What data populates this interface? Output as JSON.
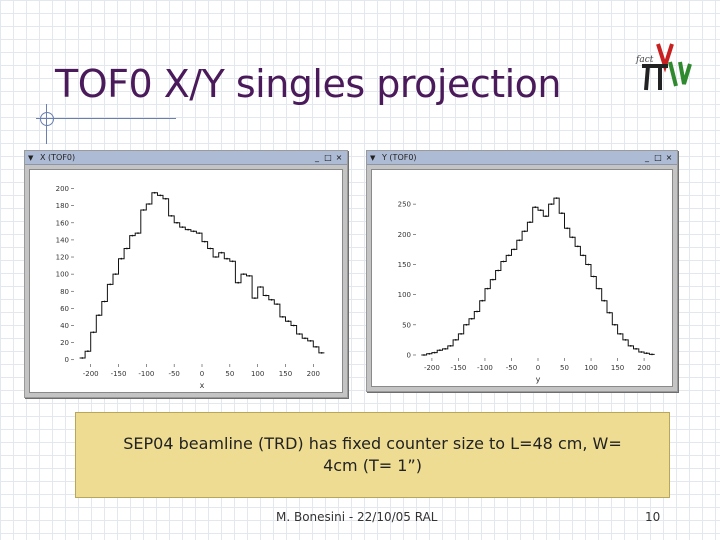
{
  "slide": {
    "title": "TOF0 X/Y singles projection",
    "note": "SEP04 beamline (TRD) has fixed counter size to L=48 cm, W= 4cm (T= 1”)",
    "footer_author": "M. Bonesini - 22/10/05 RAL",
    "page_number": "10"
  },
  "logo": {
    "icon": "pi-nu-mice-logo",
    "text": "fact"
  },
  "windows": [
    {
      "title": "X (TOF0)",
      "buttons": [
        "_",
        "□",
        "×"
      ]
    },
    {
      "title": "Y (TOF0)",
      "buttons": [
        "_",
        "□",
        "×"
      ]
    }
  ],
  "chart_data": [
    {
      "type": "line",
      "xlabel": "x",
      "ylabel": "",
      "xlim": [
        -230,
        230
      ],
      "ylim": [
        -5,
        210
      ],
      "xticks": [
        "-200",
        "-150",
        "-100",
        "-50",
        "0",
        "50",
        "100",
        "150",
        "200"
      ],
      "yticks": [
        "0",
        "20",
        "40",
        "60",
        "80",
        "100",
        "120",
        "140",
        "160",
        "180",
        "200"
      ],
      "grid": false,
      "bin_width": 10,
      "series": [
        {
          "x": [
            -215,
            -205,
            -195,
            -185,
            -175,
            -165,
            -155,
            -145,
            -135,
            -125,
            -115,
            -105,
            -95,
            -85,
            -75,
            -65,
            -55,
            -45,
            -35,
            -25,
            -15,
            -5,
            5,
            15,
            25,
            35,
            45,
            55,
            65,
            75,
            85,
            95,
            105,
            115,
            125,
            135,
            145,
            155,
            165,
            175,
            185,
            195,
            205,
            215
          ],
          "values": [
            2,
            10,
            32,
            52,
            68,
            88,
            100,
            118,
            130,
            145,
            148,
            175,
            182,
            195,
            192,
            188,
            168,
            160,
            155,
            152,
            150,
            148,
            138,
            130,
            120,
            125,
            118,
            115,
            90,
            100,
            98,
            72,
            85,
            75,
            70,
            65,
            50,
            45,
            40,
            30,
            25,
            22,
            15,
            8
          ]
        }
      ]
    },
    {
      "type": "line",
      "xlabel": "y",
      "ylabel": "",
      "xlim": [
        -230,
        230
      ],
      "ylim": [
        -5,
        290
      ],
      "xticks": [
        "-200",
        "-150",
        "-100",
        "-50",
        "0",
        "50",
        "100",
        "150",
        "200"
      ],
      "yticks": [
        "0",
        "50",
        "100",
        "150",
        "200",
        "250"
      ],
      "grid": false,
      "bin_width": 10,
      "series": [
        {
          "x": [
            -215,
            -205,
            -195,
            -185,
            -175,
            -165,
            -155,
            -145,
            -135,
            -125,
            -115,
            -105,
            -95,
            -85,
            -75,
            -65,
            -55,
            -45,
            -35,
            -25,
            -15,
            -5,
            5,
            15,
            25,
            35,
            45,
            55,
            65,
            75,
            85,
            95,
            105,
            115,
            125,
            135,
            145,
            155,
            165,
            175,
            185,
            195,
            205,
            215
          ],
          "values": [
            0,
            2,
            4,
            8,
            10,
            15,
            25,
            35,
            50,
            60,
            72,
            90,
            110,
            125,
            140,
            155,
            165,
            175,
            190,
            205,
            220,
            245,
            240,
            230,
            250,
            260,
            235,
            210,
            195,
            180,
            165,
            150,
            130,
            110,
            90,
            70,
            50,
            35,
            25,
            15,
            10,
            5,
            3,
            1
          ]
        }
      ]
    }
  ]
}
